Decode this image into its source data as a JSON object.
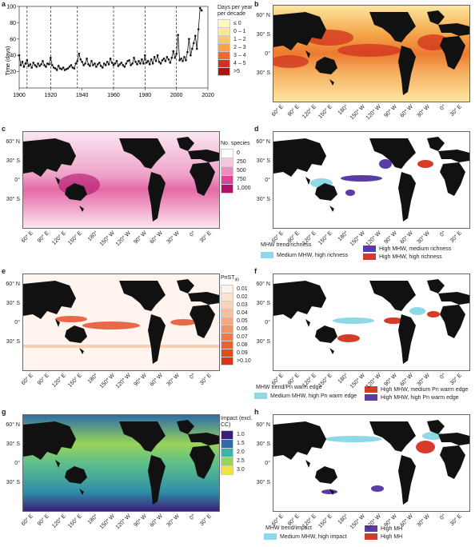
{
  "panels": {
    "a": {
      "letter": "a"
    },
    "b": {
      "letter": "b"
    },
    "c": {
      "letter": "c"
    },
    "d": {
      "letter": "d"
    },
    "e": {
      "letter": "e"
    },
    "f": {
      "letter": "f"
    },
    "g": {
      "letter": "g"
    },
    "h": {
      "letter": "h"
    }
  },
  "map_axes": {
    "lat": [
      "60° N",
      "30° S",
      "0°",
      "30° S"
    ],
    "lon": [
      "60° E",
      "90° E",
      "120° E",
      "150° E",
      "180°",
      "150° W",
      "120° W",
      "90° W",
      "60° W",
      "30° W",
      "0°",
      "30° E"
    ]
  },
  "legend_b": {
    "title": "Days per year per decade",
    "items": [
      "≤ 0",
      "0 – 1",
      "1 – 2",
      "2 – 3",
      "3 – 4",
      "4 – 5",
      ">5"
    ],
    "colors": [
      "#fff7c0",
      "#fde59a",
      "#fbc96a",
      "#f7a24a",
      "#ee6a30",
      "#d63020",
      "#b01010"
    ]
  },
  "legend_c": {
    "title": "No. species",
    "items": [
      "0",
      "250",
      "500",
      "750",
      "1,000"
    ],
    "colors": [
      "#ffffff",
      "#f7c6df",
      "#ec8cc0",
      "#d9449a",
      "#b0126a"
    ]
  },
  "legend_e": {
    "title": "PnST",
    "title_sub": "90",
    "items": [
      "0.01",
      "0.02",
      "0.03",
      "0.04",
      "0.05",
      "0.06",
      "0.07",
      "0.08",
      "0.09",
      ">0.10"
    ],
    "colors": [
      "#fff3ea",
      "#fde4d2",
      "#fbd2b8",
      "#f9bf9c",
      "#f6a981",
      "#f39266",
      "#ef7a4c",
      "#ea6136",
      "#e44a24",
      "#dd3418"
    ]
  },
  "legend_g": {
    "title": "Impact (excl. CC)",
    "items": [
      "1.0",
      "1.5",
      "2.0",
      "2.5",
      "3.0"
    ],
    "colors": [
      "#3b1f7a",
      "#2d6ea8",
      "#3fb3a8",
      "#9ad35a",
      "#f2e23a"
    ]
  },
  "legend_d": {
    "title": "MHW trend/richness",
    "items": [
      {
        "label": "Medium MHW, high richness",
        "color": "#8fd8e8"
      },
      {
        "label": "High MHW, medium richness",
        "color": "#5a3ca6"
      },
      {
        "label": "High MHW, high richness",
        "color": "#d83a2a"
      }
    ]
  },
  "legend_f": {
    "title": "MHW trend/Pn warm edge",
    "items": [
      {
        "label": "Medium MHW, high Pn warm edge",
        "color": "#8fd8e8"
      },
      {
        "label": "High MHW, medium Pn warm edge",
        "color": "#d83a2a"
      },
      {
        "label": "High MHW, high Pn warm edge",
        "color": "#5a3ca6"
      }
    ]
  },
  "legend_h": {
    "title": "MHW trend/impact",
    "items": [
      {
        "label": "Medium MHW, high impact",
        "color": "#8fd8e8"
      },
      {
        "label": "High MH",
        "color": "#5a3ca6"
      },
      {
        "label": "High MH",
        "color": "#d83a2a"
      }
    ]
  },
  "chart_data": {
    "type": "line",
    "xlabel": "",
    "ylabel": "Time (days)",
    "xlim": [
      1900,
      2020
    ],
    "ylim": [
      0,
      100
    ],
    "xticks": [
      "1900",
      "1920",
      "1940",
      "1960",
      "1980",
      "2000",
      "2020"
    ],
    "yticks": [
      "20",
      "40",
      "60",
      "80",
      "100"
    ],
    "vlines": [
      1905,
      1920,
      1937,
      1960,
      1980,
      2000
    ],
    "x": [
      1900,
      1901,
      1902,
      1903,
      1904,
      1905,
      1906,
      1907,
      1908,
      1909,
      1910,
      1911,
      1912,
      1913,
      1914,
      1915,
      1916,
      1917,
      1918,
      1919,
      1920,
      1921,
      1922,
      1923,
      1924,
      1925,
      1926,
      1927,
      1928,
      1929,
      1930,
      1931,
      1932,
      1933,
      1934,
      1935,
      1936,
      1937,
      1938,
      1939,
      1940,
      1941,
      1942,
      1943,
      1944,
      1945,
      1946,
      1947,
      1948,
      1949,
      1950,
      1951,
      1952,
      1953,
      1954,
      1955,
      1956,
      1957,
      1958,
      1959,
      1960,
      1961,
      1962,
      1963,
      1964,
      1965,
      1966,
      1967,
      1968,
      1969,
      1970,
      1971,
      1972,
      1973,
      1974,
      1975,
      1976,
      1977,
      1978,
      1979,
      1980,
      1981,
      1982,
      1983,
      1984,
      1985,
      1986,
      1987,
      1988,
      1989,
      1990,
      1991,
      1992,
      1993,
      1994,
      1995,
      1996,
      1997,
      1998,
      1999,
      2000,
      2001,
      2002,
      2003,
      2004,
      2005,
      2006,
      2007,
      2008,
      2009,
      2010,
      2011,
      2012,
      2013,
      2014,
      2015,
      2016
    ],
    "y": [
      40,
      28,
      32,
      26,
      30,
      34,
      27,
      29,
      25,
      31,
      28,
      26,
      30,
      27,
      29,
      33,
      28,
      26,
      30,
      29,
      37,
      28,
      25,
      24,
      22,
      27,
      24,
      23,
      25,
      22,
      23,
      24,
      26,
      28,
      25,
      24,
      30,
      33,
      42,
      35,
      32,
      28,
      30,
      36,
      29,
      27,
      33,
      28,
      30,
      26,
      29,
      31,
      27,
      25,
      30,
      28,
      32,
      29,
      36,
      31,
      28,
      30,
      33,
      27,
      29,
      31,
      28,
      26,
      30,
      33,
      34,
      28,
      30,
      37,
      32,
      29,
      33,
      30,
      35,
      30,
      40,
      31,
      33,
      29,
      35,
      30,
      38,
      33,
      40,
      32,
      30,
      34,
      36,
      33,
      38,
      35,
      31,
      37,
      45,
      37,
      42,
      65,
      34,
      36,
      33,
      38,
      34,
      44,
      60,
      40,
      48,
      55,
      64,
      48,
      72,
      98,
      95
    ]
  }
}
